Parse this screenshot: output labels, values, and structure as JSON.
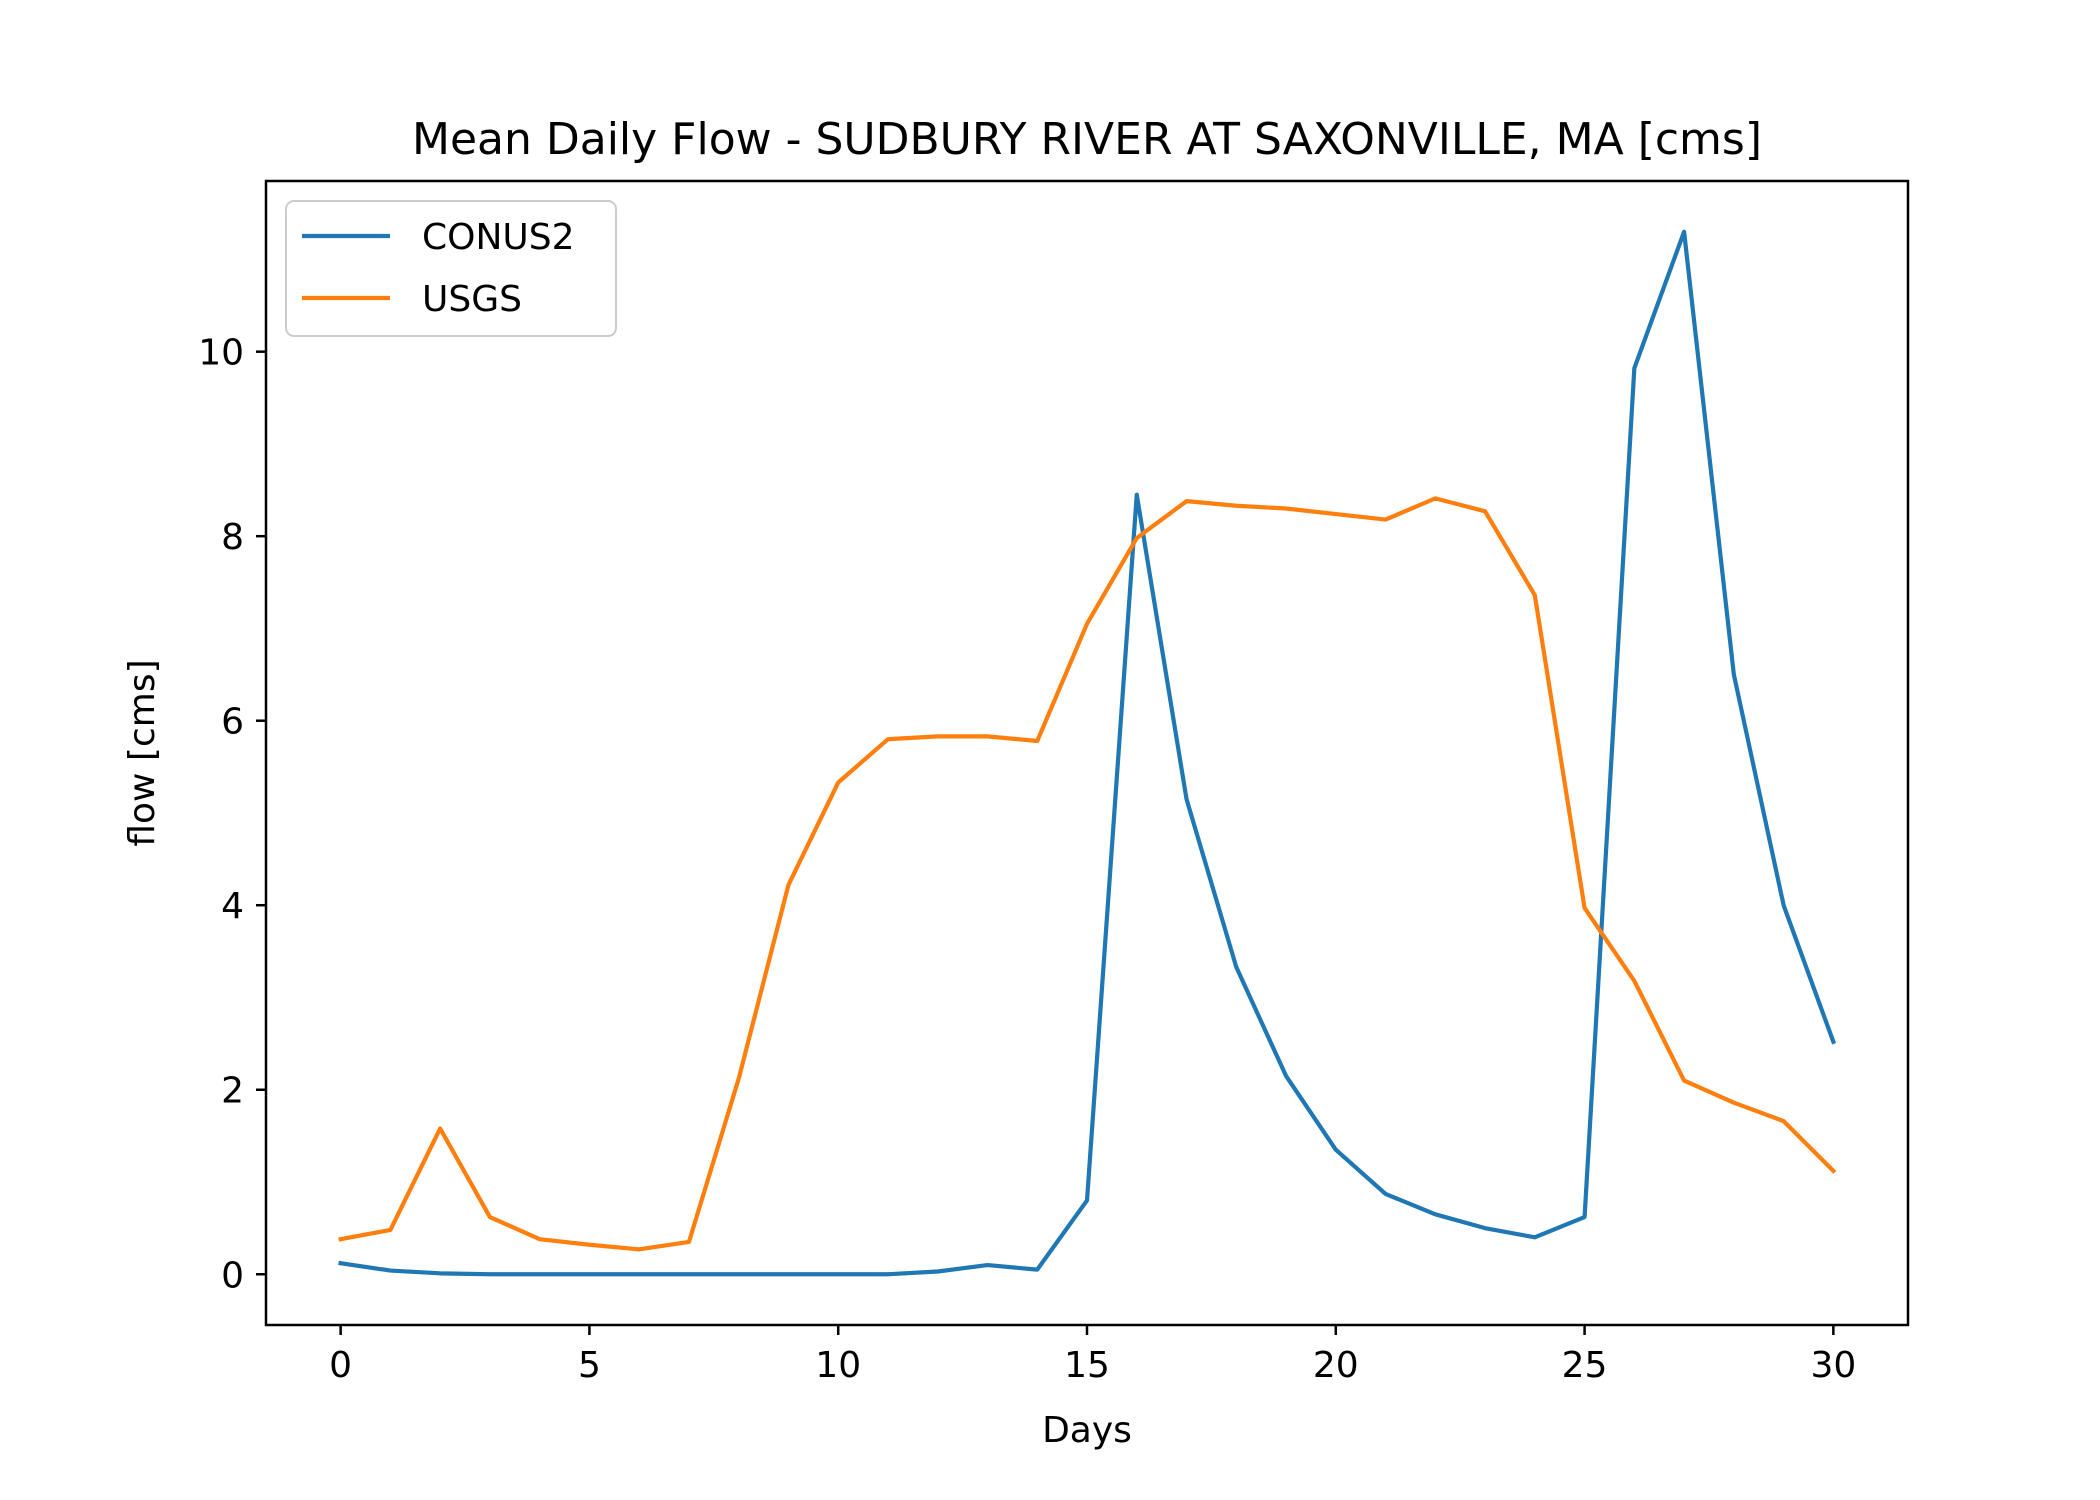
{
  "chart_data": {
    "type": "line",
    "title": "Mean Daily Flow - SUDBURY RIVER AT SAXONVILLE, MA [cms]",
    "xlabel": "Days",
    "ylabel": "flow [cms]",
    "xlim": [
      -1.5,
      31.5
    ],
    "ylim": [
      -0.55,
      11.85
    ],
    "xticks": [
      0,
      5,
      10,
      15,
      20,
      25,
      30
    ],
    "yticks": [
      0,
      2,
      4,
      6,
      8,
      10
    ],
    "legend_position": "upper left",
    "grid": false,
    "x": [
      0,
      1,
      2,
      3,
      4,
      5,
      6,
      7,
      8,
      9,
      10,
      11,
      12,
      13,
      14,
      15,
      16,
      17,
      18,
      19,
      20,
      21,
      22,
      23,
      24,
      25,
      26,
      27,
      28,
      29,
      30
    ],
    "series": [
      {
        "name": "CONUS2",
        "color": "#1f77b4",
        "values": [
          0.12,
          0.04,
          0.01,
          0.0,
          0.0,
          0.0,
          0.0,
          0.0,
          0.0,
          0.0,
          0.0,
          0.0,
          0.03,
          0.1,
          0.05,
          0.8,
          8.45,
          5.15,
          3.33,
          2.15,
          1.35,
          0.87,
          0.65,
          0.5,
          0.4,
          0.62,
          9.82,
          11.3,
          6.5,
          4.0,
          2.52
        ]
      },
      {
        "name": "USGS",
        "color": "#ff7f0e",
        "values": [
          0.38,
          0.48,
          1.58,
          0.62,
          0.38,
          0.32,
          0.27,
          0.35,
          2.12,
          4.22,
          5.33,
          5.8,
          5.83,
          5.83,
          5.78,
          7.05,
          7.98,
          8.38,
          8.33,
          8.3,
          8.24,
          8.18,
          8.41,
          8.27,
          7.36,
          3.97,
          3.18,
          2.1,
          1.86,
          1.66,
          1.12
        ]
      }
    ]
  }
}
